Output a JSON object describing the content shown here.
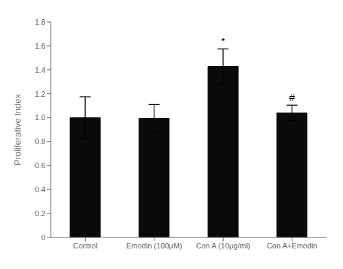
{
  "chart_data": {
    "type": "bar",
    "categories": [
      "Control",
      "Emodin (100μM)",
      "Con A (10μg/ml)",
      "Con A+Emodin"
    ],
    "values": [
      1.0,
      0.995,
      1.43,
      1.04
    ],
    "errors": [
      0.175,
      0.115,
      0.145,
      0.065
    ],
    "color": "#0a0a0a",
    "ylabel": "Proliferative Index",
    "ylim": [
      0,
      1.8
    ],
    "yticks": [
      0,
      0.2,
      0.4,
      0.6,
      0.8,
      {
        "value": 1,
        "label": "1.0"
      },
      1.2,
      1.4,
      1.6,
      1.8
    ],
    "annotations": [
      {
        "category": "Con A (10μg/ml)",
        "text": "*"
      },
      {
        "category": "Con A+Emodin",
        "text": "#"
      }
    ],
    "grid": false
  }
}
